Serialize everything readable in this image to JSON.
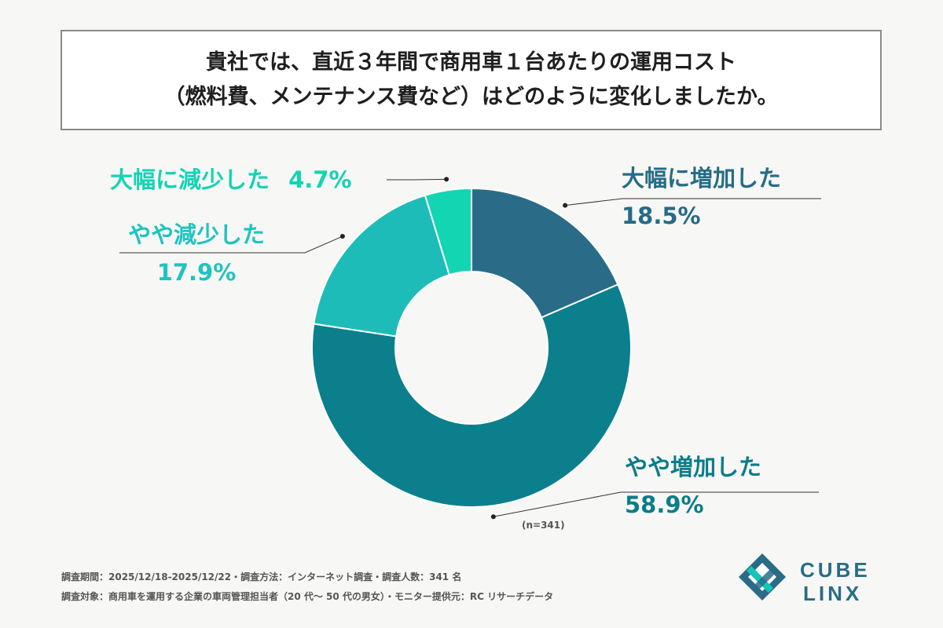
{
  "title": {
    "line1": "貴社では、直近３年間で商用車１台あたりの運用コスト",
    "line2": "（燃料費、メンテナンス費など）はどのように変化しましたか。"
  },
  "chart_data": {
    "type": "pie",
    "variant": "donut",
    "categories": [
      "大幅に増加した",
      "やや増加した",
      "やや減少した",
      "大幅に減少した"
    ],
    "values": [
      18.5,
      58.9,
      17.9,
      4.7
    ],
    "value_labels": [
      "18.5%",
      "58.9%",
      "17.9%",
      "4.7%"
    ],
    "colors": [
      "#2a6c87",
      "#0c7f8d",
      "#1dbcb9",
      "#12d6b2"
    ],
    "label_colors": [
      "#256c86",
      "#0c7c89",
      "#1ec4c0",
      "#14d3b4"
    ],
    "note": "(n=341)"
  },
  "footer": {
    "line1": "調査期間：2025/12/18-2025/12/22・調査方法：インターネット調査・調査人数：341 名",
    "line2": "調査対象：商用車を運用する企業の車両管理担当者（20 代〜 50 代の男女）・モニター提供元：RC リサーチデータ"
  },
  "logo": {
    "line1": "CUBE",
    "line2": "LINX"
  }
}
